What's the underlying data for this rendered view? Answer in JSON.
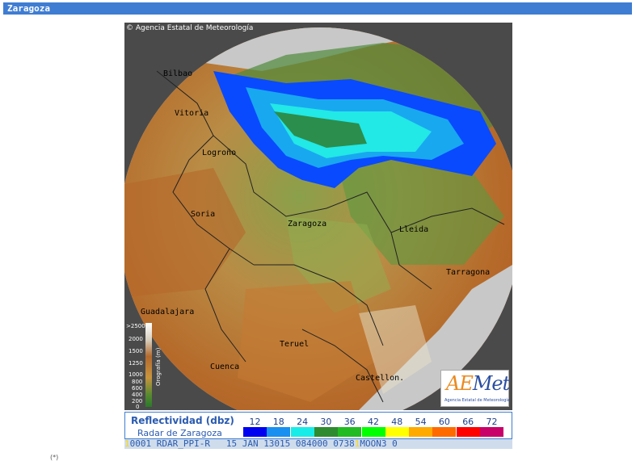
{
  "header": {
    "title": "Zaragoza"
  },
  "map": {
    "copyright": "© Agencia Estatal de Meteorología",
    "cities": [
      "Bilbao",
      "Vitoria",
      "Logroño",
      "Soria",
      "Zaragoza",
      "Lleida",
      "Tarragona",
      "Guadalajara",
      "Teruel",
      "Cuenca",
      "Castellon."
    ]
  },
  "orography": {
    "title": "Orografía (m)",
    "levels": [
      ">2500",
      "2000",
      "1500",
      "1250",
      "1000",
      "800",
      "600",
      "400",
      "200",
      "0"
    ]
  },
  "logo": {
    "text_a": "AE",
    "text_b": "Met",
    "caption": "Agencia Estatal de Meteorología"
  },
  "legend": {
    "title": "Reflectividad (dbz)",
    "subtitle": "Radar de Zaragoza",
    "values": [
      "12",
      "18",
      "24",
      "30",
      "36",
      "42",
      "48",
      "54",
      "60",
      "66",
      "72"
    ],
    "colors": [
      "#0000f0",
      "#1a90f0",
      "#18ece8",
      "#2e8b30",
      "#22bb22",
      "#00ff00",
      "#ffff00",
      "#ffaa00",
      "#ff6a00",
      "#ff0000",
      "#c8006a"
    ]
  },
  "status": {
    "prefix": "1",
    "text": "0001 RDAR_PPI-R   15 JAN 13015 084000 0738",
    "highlight": "1",
    "tail": "MOON3 0"
  },
  "footnote": {
    "text": "(*)"
  }
}
